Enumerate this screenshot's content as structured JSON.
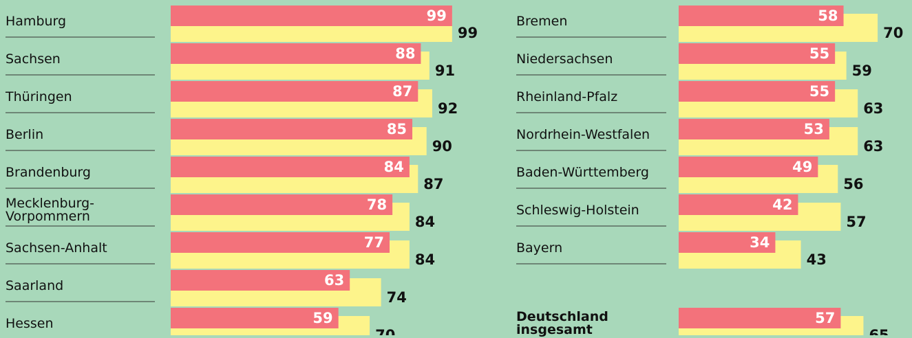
{
  "chart_data": [
    {
      "type": "bar",
      "categories": [
        "Hamburg",
        "Sachsen",
        "Thüringen",
        "Berlin",
        "Brandenburg",
        "Mecklenburg-Vorpommern",
        "Sachsen-Anhalt",
        "Saarland",
        "Hessen"
      ],
      "series": [
        {
          "color": "#f3727b",
          "values": [
            99,
            88,
            87,
            85,
            84,
            78,
            77,
            63,
            59
          ]
        },
        {
          "color": "#fdf48b",
          "values": [
            99,
            91,
            92,
            90,
            87,
            84,
            84,
            74,
            70
          ]
        }
      ]
    },
    {
      "type": "bar",
      "categories": [
        "Bremen",
        "Niedersachsen",
        "Rheinland-Pfalz",
        "Nordrhein-Westfalen",
        "Baden-Württemberg",
        "Schleswig-Holstein",
        "Bayern",
        null,
        "Deutschland insgesamt"
      ],
      "series": [
        {
          "color": "#f3727b",
          "values": [
            58,
            55,
            55,
            53,
            49,
            42,
            34,
            null,
            57
          ]
        },
        {
          "color": "#fdf48b",
          "values": [
            70,
            59,
            63,
            63,
            56,
            57,
            43,
            null,
            65
          ]
        }
      ],
      "bold_last": true
    }
  ]
}
